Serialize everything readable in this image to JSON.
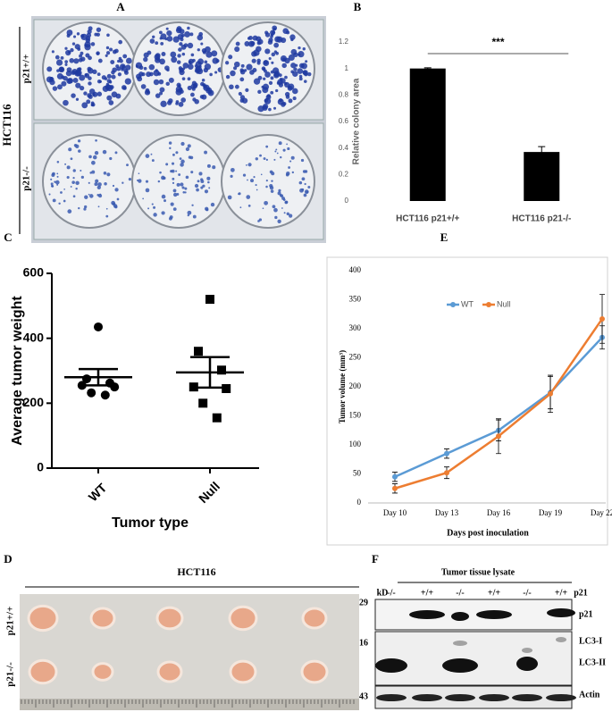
{
  "panel_labels": [
    "A",
    "B",
    "C",
    "D",
    "E",
    "F"
  ],
  "panel_a": {
    "cell_line": "HCT116",
    "rows": [
      "p21+/+",
      "p21-/-"
    ]
  },
  "panel_d": {
    "title": "HCT116",
    "rows": [
      "p21+/+",
      "p21-/-"
    ]
  },
  "panel_f": {
    "title": "Tumor tissue lysate",
    "unit": "kD",
    "genotype_label": "p21",
    "lanes": [
      "-/-",
      "+/+",
      "-/-",
      "+/+",
      "-/-",
      "+/+"
    ],
    "markers": [
      29,
      16,
      43
    ],
    "bands": [
      "p21",
      "LC3-I",
      "LC3-II",
      "Actin"
    ]
  },
  "chart_data": [
    {
      "type": "bar",
      "ylabel": "Relative colony area",
      "categories": [
        "HCT116 p21+/+",
        "HCT116 p21-/-"
      ],
      "values": [
        1,
        0.37
      ],
      "errors": [
        0.005,
        0.04
      ],
      "color": "#000000",
      "ylim": [
        0,
        1.2
      ],
      "yticks": [
        0,
        0.2,
        0.4,
        0.6,
        0.8,
        1,
        1.2
      ],
      "annotation": "***"
    },
    {
      "type": "dot",
      "xlabel": "Tumor type",
      "ylabel": "Average tumor weight",
      "categories": [
        "WT",
        "Null"
      ],
      "points": [
        [
          435,
          275,
          262,
          255,
          250,
          232,
          225
        ],
        [
          520,
          360,
          302,
          250,
          245,
          200,
          155
        ]
      ],
      "means": [
        280,
        295
      ],
      "errors": [
        25,
        47
      ],
      "color": "#000000",
      "ylim": [
        0,
        600
      ],
      "yticks": [
        0,
        200,
        400,
        600
      ]
    },
    {
      "type": "line",
      "xlabel": "Days post inoculation",
      "ylabel": "Tumor volume (mm³)",
      "categories": [
        "Day 10",
        "Day 13",
        "Day 16",
        "Day 19",
        "Day 22"
      ],
      "series": [
        {
          "name": "WT",
          "color": "#5b9bd5",
          "values": [
            45,
            85,
            125,
            190,
            285
          ],
          "errors": [
            8,
            8,
            18,
            28,
            20
          ]
        },
        {
          "name": "Null",
          "color": "#ed7d31",
          "values": [
            25,
            52,
            115,
            188,
            317
          ],
          "errors": [
            8,
            10,
            30,
            32,
            42
          ]
        }
      ],
      "ylim": [
        0,
        400
      ],
      "yticks": [
        0,
        50,
        100,
        150,
        200,
        250,
        300,
        350,
        400
      ],
      "legend": "top-left"
    }
  ]
}
